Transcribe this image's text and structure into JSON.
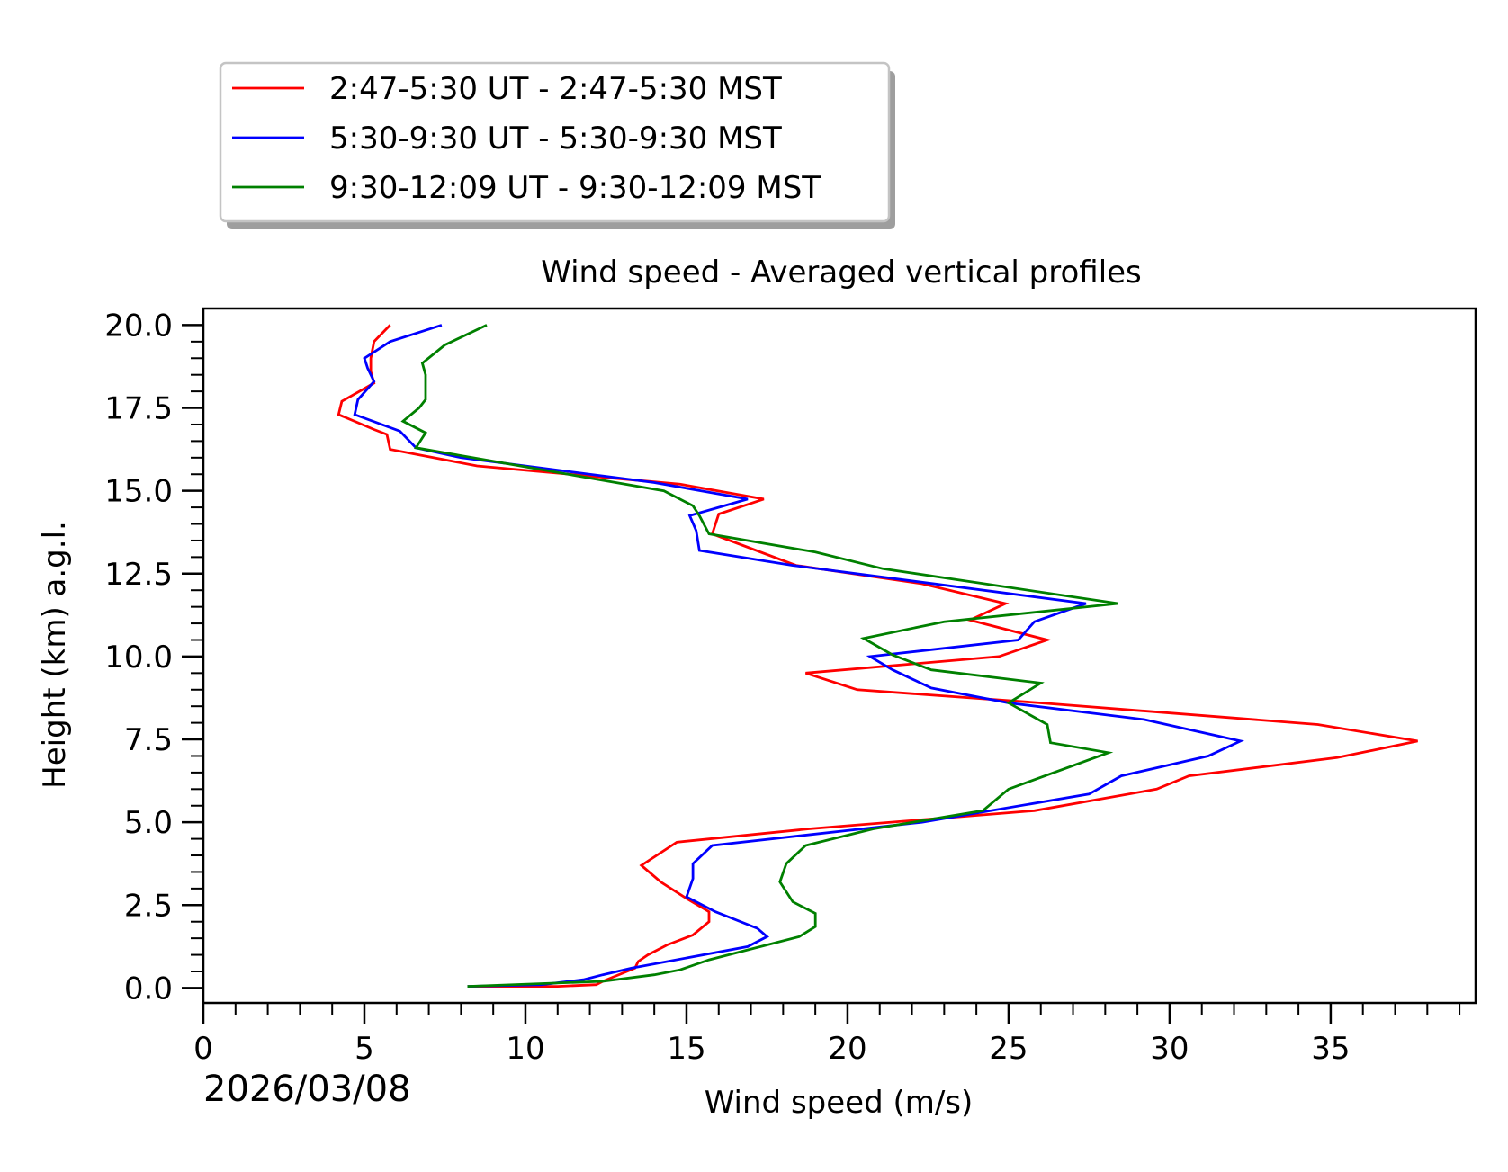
{
  "chart_data": {
    "type": "line",
    "title": "Wind speed - Averaged vertical profiles",
    "xlabel": "Wind speed (m/s)",
    "ylabel": "Height (km) a.g.l.",
    "date_label": "2026/03/08",
    "xlim": [
      0,
      39.5
    ],
    "ylim": [
      -0.45,
      20.5
    ],
    "x_ticks": [
      0,
      5,
      10,
      15,
      20,
      25,
      30,
      35
    ],
    "x_tick_labels": [
      "0",
      "5",
      "10",
      "15",
      "20",
      "25",
      "30",
      "35"
    ],
    "y_ticks": [
      0,
      2.5,
      5,
      7.5,
      10,
      12.5,
      15,
      17.5,
      20
    ],
    "y_tick_labels": [
      "0.0",
      "2.5",
      "5.0",
      "7.5",
      "10.0",
      "12.5",
      "15.0",
      "17.5",
      "20.0"
    ],
    "legend_position": "above-left",
    "series": [
      {
        "name": "2:47-5:30 UT - 2:47-5:30 MST",
        "color": "#ff0000",
        "points": [
          [
            8.2,
            0.05
          ],
          [
            11.0,
            0.05
          ],
          [
            12.2,
            0.1
          ],
          [
            12.4,
            0.2
          ],
          [
            13.4,
            0.6
          ],
          [
            13.5,
            0.8
          ],
          [
            13.8,
            1.0
          ],
          [
            14.4,
            1.3
          ],
          [
            15.2,
            1.6
          ],
          [
            15.7,
            2.0
          ],
          [
            15.7,
            2.3
          ],
          [
            15.0,
            2.7
          ],
          [
            14.2,
            3.2
          ],
          [
            13.6,
            3.7
          ],
          [
            14.7,
            4.4
          ],
          [
            18.8,
            4.8
          ],
          [
            25.8,
            5.35
          ],
          [
            29.6,
            6.0
          ],
          [
            30.6,
            6.4
          ],
          [
            35.2,
            6.95
          ],
          [
            37.7,
            7.45
          ],
          [
            34.6,
            7.95
          ],
          [
            26.0,
            8.6
          ],
          [
            20.3,
            9.0
          ],
          [
            18.7,
            9.5
          ],
          [
            24.7,
            10.0
          ],
          [
            26.2,
            10.5
          ],
          [
            23.8,
            11.1
          ],
          [
            24.9,
            11.6
          ],
          [
            22.3,
            12.2
          ],
          [
            18.4,
            12.75
          ],
          [
            15.8,
            13.7
          ],
          [
            16.0,
            14.3
          ],
          [
            17.4,
            14.75
          ],
          [
            14.8,
            15.2
          ],
          [
            8.5,
            15.75
          ],
          [
            5.8,
            16.25
          ],
          [
            5.7,
            16.7
          ],
          [
            5.3,
            16.85
          ],
          [
            4.2,
            17.3
          ],
          [
            4.3,
            17.7
          ],
          [
            5.3,
            18.25
          ],
          [
            5.2,
            18.6
          ],
          [
            5.2,
            19.0
          ],
          [
            5.3,
            19.5
          ],
          [
            5.8,
            20.0
          ]
        ]
      },
      {
        "name": "5:30-9:30 UT - 5:30-9:30 MST",
        "color": "#0000ff",
        "points": [
          [
            8.2,
            0.05
          ],
          [
            10.5,
            0.1
          ],
          [
            11.8,
            0.25
          ],
          [
            12.4,
            0.4
          ],
          [
            13.3,
            0.6
          ],
          [
            16.9,
            1.25
          ],
          [
            17.5,
            1.55
          ],
          [
            17.2,
            1.8
          ],
          [
            15.9,
            2.3
          ],
          [
            15.0,
            2.75
          ],
          [
            15.2,
            3.3
          ],
          [
            15.2,
            3.75
          ],
          [
            15.8,
            4.3
          ],
          [
            22.3,
            5.0
          ],
          [
            27.5,
            5.85
          ],
          [
            28.5,
            6.4
          ],
          [
            31.2,
            7.0
          ],
          [
            32.2,
            7.45
          ],
          [
            29.2,
            8.1
          ],
          [
            25.0,
            8.6
          ],
          [
            22.6,
            9.05
          ],
          [
            21.4,
            9.6
          ],
          [
            20.7,
            10.0
          ],
          [
            25.3,
            10.5
          ],
          [
            25.8,
            11.05
          ],
          [
            27.4,
            11.6
          ],
          [
            18.3,
            12.75
          ],
          [
            15.4,
            13.2
          ],
          [
            15.3,
            13.8
          ],
          [
            15.1,
            14.25
          ],
          [
            16.9,
            14.75
          ],
          [
            14.0,
            15.25
          ],
          [
            8.0,
            16.0
          ],
          [
            6.6,
            16.3
          ],
          [
            6.1,
            16.8
          ],
          [
            4.7,
            17.3
          ],
          [
            4.8,
            17.75
          ],
          [
            5.3,
            18.3
          ],
          [
            5.1,
            18.7
          ],
          [
            5.0,
            19.0
          ],
          [
            5.8,
            19.5
          ],
          [
            7.4,
            20.0
          ]
        ]
      },
      {
        "name": "9:30-12:09 UT - 9:30-12:09 MST",
        "color": "#008000",
        "points": [
          [
            8.2,
            0.05
          ],
          [
            12.4,
            0.2
          ],
          [
            14.0,
            0.4
          ],
          [
            14.8,
            0.55
          ],
          [
            15.7,
            0.85
          ],
          [
            18.5,
            1.55
          ],
          [
            19.0,
            1.85
          ],
          [
            19.0,
            2.25
          ],
          [
            18.3,
            2.6
          ],
          [
            17.9,
            3.2
          ],
          [
            18.1,
            3.75
          ],
          [
            18.7,
            4.3
          ],
          [
            20.8,
            4.8
          ],
          [
            24.2,
            5.35
          ],
          [
            25.0,
            6.0
          ],
          [
            28.1,
            7.1
          ],
          [
            26.3,
            7.4
          ],
          [
            26.2,
            7.95
          ],
          [
            25.0,
            8.6
          ],
          [
            26.0,
            9.2
          ],
          [
            22.6,
            9.6
          ],
          [
            21.4,
            10.05
          ],
          [
            20.5,
            10.55
          ],
          [
            23.0,
            11.05
          ],
          [
            28.4,
            11.6
          ],
          [
            21.1,
            12.65
          ],
          [
            19.0,
            13.15
          ],
          [
            15.7,
            13.7
          ],
          [
            15.4,
            14.25
          ],
          [
            15.2,
            14.55
          ],
          [
            14.3,
            15.0
          ],
          [
            12.5,
            15.3
          ],
          [
            6.6,
            16.3
          ],
          [
            6.9,
            16.75
          ],
          [
            6.2,
            17.1
          ],
          [
            6.7,
            17.5
          ],
          [
            6.9,
            17.75
          ],
          [
            6.9,
            18.5
          ],
          [
            6.8,
            18.85
          ],
          [
            7.5,
            19.4
          ],
          [
            8.8,
            20.0
          ]
        ]
      }
    ]
  }
}
